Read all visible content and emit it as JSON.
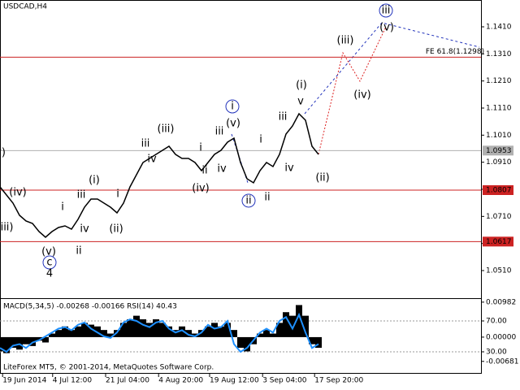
{
  "chart_data": [
    {
      "type": "line",
      "title": "USDCAD,H4",
      "color": "#000000",
      "values": [
        1.0819,
        1.0789,
        1.0759,
        1.0714,
        1.0693,
        1.0684,
        1.0654,
        1.0633,
        1.0654,
        1.0669,
        1.0675,
        1.0663,
        1.0699,
        1.0744,
        1.0774,
        1.0774,
        1.0759,
        1.0744,
        1.0723,
        1.0759,
        1.0819,
        1.0864,
        1.0909,
        1.0924,
        1.0939,
        1.0954,
        1.0969,
        1.0939,
        1.0924,
        1.0924,
        1.0909,
        1.0879,
        1.0909,
        1.0939,
        1.0954,
        1.0984,
        1.0999,
        1.0909,
        1.0849,
        1.0834,
        1.0879,
        1.0909,
        1.0894,
        1.0939,
        1.1014,
        1.1044,
        1.1089,
        1.1065,
        1.0969,
        1.0939
      ],
      "xlim": [
        0,
        74
      ],
      "ylim": [
        1.0408,
        1.1509
      ],
      "yticks": [
        {
          "value": 1.141,
          "label": "1.1410"
        },
        {
          "value": 1.131,
          "label": "1.1310"
        },
        {
          "value": 1.121,
          "label": "1.1210"
        },
        {
          "value": 1.111,
          "label": "1.1110"
        },
        {
          "value": 1.101,
          "label": "1.1010"
        },
        {
          "value": 1.091,
          "label": "1.0910"
        },
        {
          "value": 1.081,
          "label": "1.0810"
        },
        {
          "value": 1.071,
          "label": "1.0710"
        },
        {
          "value": 1.061,
          "label": "1.0610"
        },
        {
          "value": 1.051,
          "label": "1.0510"
        }
      ],
      "levels": [
        {
          "value": 1.1298,
          "label": "FE 61.8(1.1298)",
          "color": "#cc2222",
          "boxed": false
        },
        {
          "value": 1.0953,
          "label": "1.0953",
          "color": "#b0b0b0",
          "boxed": true
        },
        {
          "value": 1.0807,
          "label": "1.0807",
          "color": "#cc2222",
          "boxed": true
        },
        {
          "value": 1.0617,
          "label": "1.0617",
          "color": "#cc2222",
          "boxed": true
        }
      ],
      "annotations": [
        {
          "text": "(v)",
          "color": "#cc2222",
          "circle": false
        },
        {
          "text": "(iv)",
          "color": "#cc2222",
          "circle": false
        },
        {
          "text": "(iii)",
          "color": "#cc2222",
          "circle": false
        },
        {
          "text": "i",
          "color": "#777777",
          "circle": false
        },
        {
          "text": "iv",
          "color": "#777777",
          "circle": false
        },
        {
          "text": "ii",
          "color": "#777777",
          "circle": false
        },
        {
          "text": "(v)",
          "color": "#cc2222",
          "circle": false
        },
        {
          "text": "c",
          "color": "#2233bb",
          "circle": true
        },
        {
          "text": "4",
          "color": "#aa4422",
          "circle": false
        },
        {
          "text": "iii",
          "color": "#777777",
          "circle": false
        },
        {
          "text": "(i)",
          "color": "#cc2222",
          "circle": false
        },
        {
          "text": "i",
          "color": "#777777",
          "circle": false
        },
        {
          "text": "(ii)",
          "color": "#cc2222",
          "circle": false
        },
        {
          "text": "iii",
          "color": "#777777",
          "circle": false
        },
        {
          "text": "iv",
          "color": "#777777",
          "circle": false
        },
        {
          "text": "(iii)",
          "color": "#cc2222",
          "circle": false
        },
        {
          "text": "i",
          "color": "#777777",
          "circle": false
        },
        {
          "text": "(iv)",
          "color": "#cc2222",
          "circle": false
        },
        {
          "text": "ii",
          "color": "#777777",
          "circle": false
        },
        {
          "text": "iii",
          "color": "#777777",
          "circle": false
        },
        {
          "text": "iv",
          "color": "#777777",
          "circle": false
        },
        {
          "text": "(v)",
          "color": "#cc2222",
          "circle": false
        },
        {
          "text": "i",
          "color": "#2233bb",
          "circle": true
        },
        {
          "text": "i",
          "color": "#777777",
          "circle": false
        },
        {
          "text": "iv",
          "color": "#777777",
          "circle": false
        },
        {
          "text": "ii",
          "color": "#777777",
          "circle": false
        },
        {
          "text": "ii",
          "color": "#2233bb",
          "circle": true
        },
        {
          "text": "iii",
          "color": "#777777",
          "circle": false
        },
        {
          "text": "v",
          "color": "#777777",
          "circle": false
        },
        {
          "text": "(i)",
          "color": "#cc2222",
          "circle": false
        },
        {
          "text": "(ii)",
          "color": "#cc2222",
          "circle": false
        },
        {
          "text": "(iii)",
          "color": "#cc2222",
          "circle": false
        },
        {
          "text": "(iv)",
          "color": "#cc2222",
          "circle": false
        },
        {
          "text": "(v)",
          "color": "#cc2222",
          "circle": false
        },
        {
          "text": "iii",
          "color": "#2233bb",
          "circle": true
        }
      ]
    },
    {
      "type": "bar",
      "title": "MACD(5,34,5) -0.00268 -0.00166 RSI(14) 40.43",
      "watermark": "LiteForex MT5, © 2001-2014, MetaQuotes Software Corp.",
      "xlim": [
        0,
        74
      ],
      "ylim": [
        -0.01028,
        0.0107
      ],
      "y2lim": [
        1.6,
        98.4
      ],
      "xticks": [
        {
          "value": 0.4,
          "label": "19 Jun 2014"
        },
        {
          "value": 8.1,
          "label": "4 Jul 12:00"
        },
        {
          "value": 16.25,
          "label": "21 Jul 04:00"
        },
        {
          "value": 24.4,
          "label": "4 Aug 20:00"
        },
        {
          "value": 32.25,
          "label": "19 Aug 12:00"
        },
        {
          "value": 40.4,
          "label": "3 Sep 04:00"
        },
        {
          "value": 48.4,
          "label": "17 Sep 20:00"
        }
      ],
      "yticks": [
        0.00982,
        {
          "value": 0,
          "label": "0.00000"
        },
        -0.00681
      ],
      "y2ticks": [
        {
          "value": 70,
          "label": "70.00"
        },
        {
          "value": 30,
          "label": "30.00"
        }
      ],
      "series": [
        {
          "color": "#000000",
          "values": [
            -0.004,
            -0.0045,
            -0.003,
            -0.0035,
            -0.002,
            -0.0025,
            -0.001,
            -0.0015,
            0.001,
            0.002,
            0.003,
            0.002,
            0.003,
            0.004,
            0.0035,
            0.003,
            0.002,
            0.001,
            0.002,
            0.004,
            0.005,
            0.006,
            0.005,
            0.004,
            0.005,
            0.004,
            0.003,
            0.002,
            0.003,
            0.002,
            0.001,
            0.002,
            0.003,
            0.004,
            0.003,
            0.004,
            0.002,
            -0.003,
            -0.004,
            -0.002,
            0.001,
            0.002,
            0.001,
            0.004,
            0.007,
            0.006,
            0.009,
            0.006,
            -0.002,
            -0.003
          ]
        },
        {
          "color": "#1e90ff",
          "axis": "y2",
          "values": [
            35,
            30,
            38,
            40,
            35,
            42,
            45,
            50,
            55,
            60,
            62,
            58,
            65,
            68,
            60,
            55,
            50,
            48,
            55,
            68,
            72,
            70,
            65,
            62,
            68,
            70,
            60,
            55,
            58,
            52,
            50,
            55,
            65,
            60,
            62,
            70,
            40,
            30,
            35,
            45,
            55,
            60,
            55,
            70,
            75,
            60,
            78,
            55,
            35,
            40
          ]
        }
      ]
    }
  ]
}
